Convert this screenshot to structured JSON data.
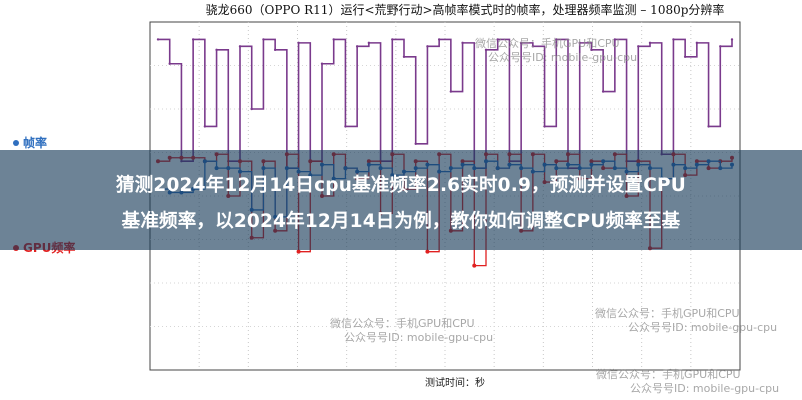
{
  "chart_data": {
    "type": "line",
    "title": "骁龙660（OPPO R11）运行<荒野行动>高帧率模式时的帧率，处理器频率监测 – 1080p分辨率",
    "xlabel": "测试时间：秒",
    "ylabel": "",
    "grid": true,
    "legend_position": "left",
    "series": [
      {
        "name": "帧率",
        "color": "#2f6fbf",
        "values": [
          52,
          51,
          51,
          52,
          60,
          58,
          58,
          57,
          46,
          58,
          44,
          58,
          57,
          56,
          59,
          55,
          58,
          57,
          59,
          58,
          56,
          57,
          58,
          59,
          57,
          58,
          59,
          58,
          60,
          58,
          59,
          58,
          57,
          59,
          58,
          59,
          58,
          59,
          60,
          58,
          57,
          59,
          58,
          55,
          59,
          58,
          59,
          60,
          58,
          59
        ]
      },
      {
        "name": "GPU频率",
        "color": "#e02020",
        "values": [
          60,
          61,
          61,
          61,
          60,
          62,
          50,
          60,
          38,
          60,
          40,
          62,
          34,
          60,
          50,
          62,
          58,
          55,
          60,
          45,
          62,
          52,
          60,
          34,
          62,
          40,
          60,
          30,
          62,
          58,
          62,
          40,
          62,
          54,
          60,
          62,
          55,
          60,
          58,
          62,
          50,
          60,
          35,
          55,
          62,
          56,
          60,
          58,
          60,
          61
        ]
      },
      {
        "name": "",
        "color": "#7a3a8c",
        "values": [
          95,
          88,
          60,
          95,
          70,
          92,
          60,
          93,
          75,
          95,
          92,
          58,
          94,
          60,
          88,
          95,
          70,
          93,
          94,
          60,
          95,
          90,
          65,
          93,
          95,
          80,
          94,
          58,
          92,
          95,
          60,
          94,
          93,
          70,
          95,
          58,
          94,
          92,
          80,
          95,
          60,
          93,
          94,
          62,
          95,
          90,
          94,
          70,
          93,
          95
        ]
      }
    ]
  },
  "legend": {
    "items": [
      {
        "label": "帧率",
        "color": "#2f6fbf"
      },
      {
        "label": "GPU频率",
        "color": "#e02020"
      }
    ]
  },
  "watermarks": {
    "line1": "微信公众号：手机GPU和CPU",
    "line2": "公众号号ID: mobile-gpu-cpu"
  },
  "banner": {
    "line1": "猜测2024年12月14日cpu基准频率2.6实时0.9，预测并设置CPU",
    "line2": "基准频率，以2024年12月14日为例，教你如何调整CPU频率至基"
  }
}
